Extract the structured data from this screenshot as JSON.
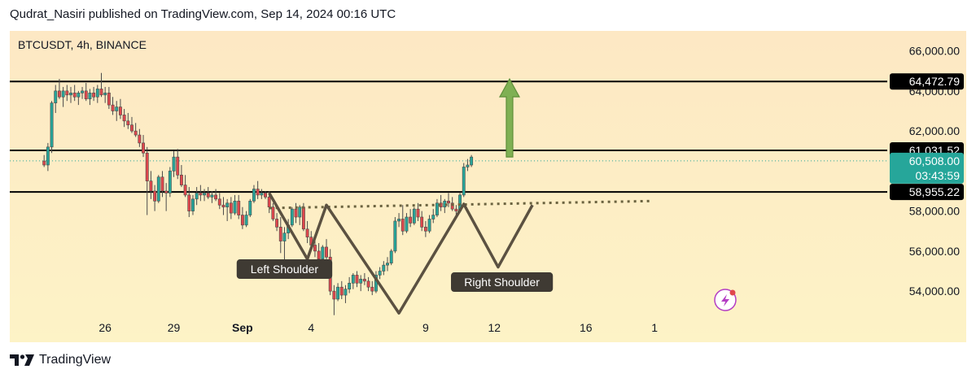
{
  "header": {
    "published_text": "Qudrat_Nasiri published on TradingView.com, Sep 14, 2024 00:16 UTC"
  },
  "footer": {
    "brand": "TradingView",
    "logo_icon": "tradingview-logo-icon"
  },
  "colors": {
    "bg_top": "#fde8c4",
    "bg_bottom": "#fdf3c6",
    "up": "#26a69a",
    "down": "#e0474c",
    "pattern": "#5b5141",
    "arrow": "#7fb053",
    "label_bg": "#3f3a33",
    "line": "#000000",
    "current_price_bg": "#26a69a",
    "dotted_neckline": "#6b6340"
  },
  "chart_data": {
    "type": "candlestick",
    "symbol_label": "BTCUSDT, 4h, BINANCE",
    "ylim": [
      52300,
      67000
    ],
    "xlim": [
      -25,
      205
    ],
    "y_ticks": [
      {
        "value": 66000,
        "label": "66,000.00"
      },
      {
        "value": 64000,
        "label": "64,000.00"
      },
      {
        "value": 62000,
        "label": "62,000.00"
      },
      {
        "value": 58000,
        "label": "58,000.00"
      },
      {
        "value": 56000,
        "label": "56,000.00"
      },
      {
        "value": 54000,
        "label": "54,000.00"
      }
    ],
    "x_ticks": [
      {
        "label": "26",
        "x": 0
      },
      {
        "label": "29",
        "x": 18
      },
      {
        "label": "Sep",
        "x": 36
      },
      {
        "label": "4",
        "x": 54
      },
      {
        "label": "9",
        "x": 84
      },
      {
        "label": "12",
        "x": 102
      },
      {
        "label": "16",
        "x": 126
      },
      {
        "label": "1",
        "x": 144
      }
    ],
    "levels": [
      {
        "price": 64472.79,
        "label": "64,472.79"
      },
      {
        "price": 61031.52,
        "label": "61,031.52"
      },
      {
        "price": 58955.22,
        "label": "58,955.22"
      }
    ],
    "current_price": {
      "price": 60508.0,
      "label": "60,508.00",
      "countdown": "03:43:59"
    },
    "neckline": [
      [
        43,
        58150
      ],
      [
        143,
        58500
      ]
    ],
    "pattern_path": [
      [
        43,
        58900
      ],
      [
        53,
        55600
      ],
      [
        58,
        58300
      ],
      [
        77,
        52900
      ],
      [
        94,
        58350
      ],
      [
        103,
        55200
      ],
      [
        112,
        58300
      ]
    ],
    "annotations": [
      {
        "text": "Left Shoulder",
        "x": 47,
        "price": 55100
      },
      {
        "text": "Right Shoulder",
        "x": 104,
        "price": 54450
      }
    ],
    "arrow": {
      "x": 106,
      "from": 60700,
      "to": 64600
    },
    "candles": [
      [
        -16,
        60500,
        60800,
        60200,
        60300
      ],
      [
        -15,
        60300,
        61400,
        60000,
        61200
      ],
      [
        -14,
        61200,
        63500,
        60900,
        63400
      ],
      [
        -13,
        63400,
        64300,
        62900,
        64000
      ],
      [
        -12,
        64000,
        64600,
        63600,
        63700
      ],
      [
        -11,
        63700,
        64200,
        63200,
        64000
      ],
      [
        -10,
        64000,
        64300,
        63500,
        63800
      ],
      [
        -9,
        63800,
        64200,
        63400,
        63900
      ],
      [
        -8,
        63900,
        64300,
        63500,
        63700
      ],
      [
        -7,
        63700,
        64000,
        63300,
        63900
      ],
      [
        -6,
        63900,
        64200,
        63600,
        64000
      ],
      [
        -5,
        64000,
        64400,
        63500,
        63600
      ],
      [
        -4,
        63600,
        64100,
        63300,
        63900
      ],
      [
        -3,
        63900,
        64200,
        63500,
        63700
      ],
      [
        -2,
        63700,
        64300,
        63400,
        64100
      ],
      [
        -1,
        64100,
        64900,
        63700,
        63800
      ],
      [
        0,
        63800,
        64200,
        63400,
        63900
      ],
      [
        1,
        63900,
        64200,
        63100,
        63300
      ],
      [
        2,
        63300,
        63700,
        62800,
        63000
      ],
      [
        3,
        63000,
        63500,
        62500,
        63200
      ],
      [
        4,
        63200,
        63600,
        62600,
        62800
      ],
      [
        5,
        62800,
        63100,
        62200,
        62500
      ],
      [
        6,
        62500,
        62900,
        62100,
        62300
      ],
      [
        7,
        62300,
        62700,
        61900,
        62000
      ],
      [
        8,
        62000,
        62400,
        61700,
        61800
      ],
      [
        9,
        61800,
        62100,
        61200,
        61400
      ],
      [
        10,
        61400,
        61800,
        60700,
        60900
      ],
      [
        11,
        60900,
        61200,
        57800,
        59500
      ],
      [
        12,
        59500,
        60000,
        58600,
        59000
      ],
      [
        13,
        59000,
        59300,
        58000,
        58500
      ],
      [
        14,
        58500,
        59800,
        58400,
        59700
      ],
      [
        15,
        59700,
        60000,
        58700,
        59000
      ],
      [
        16,
        59000,
        59400,
        58000,
        58900
      ],
      [
        17,
        58900,
        60200,
        58700,
        60000
      ],
      [
        18,
        60000,
        61000,
        59700,
        60700
      ],
      [
        19,
        60700,
        61100,
        59600,
        59800
      ],
      [
        20,
        59800,
        60300,
        59200,
        59300
      ],
      [
        21,
        59300,
        59800,
        58700,
        58800
      ],
      [
        22,
        58800,
        59200,
        57700,
        58000
      ],
      [
        23,
        58000,
        58800,
        57800,
        58600
      ],
      [
        24,
        58600,
        59200,
        58300,
        58900
      ],
      [
        25,
        58900,
        59300,
        58500,
        58800
      ],
      [
        26,
        58800,
        59100,
        58500,
        58900
      ],
      [
        27,
        58900,
        59200,
        58600,
        58700
      ],
      [
        28,
        58700,
        59000,
        58400,
        58800
      ],
      [
        29,
        58800,
        59100,
        58500,
        58600
      ],
      [
        30,
        58600,
        58900,
        58100,
        58300
      ],
      [
        31,
        58300,
        58700,
        57800,
        58200
      ],
      [
        32,
        58200,
        58600,
        57500,
        58400
      ],
      [
        33,
        58400,
        58700,
        57600,
        57900
      ],
      [
        34,
        57900,
        58800,
        57800,
        58500
      ],
      [
        35,
        58500,
        58800,
        57600,
        57800
      ],
      [
        36,
        57800,
        58200,
        57100,
        57300
      ],
      [
        37,
        57300,
        58000,
        57200,
        57800
      ],
      [
        38,
        57800,
        58600,
        57700,
        58500
      ],
      [
        39,
        58500,
        59300,
        58400,
        59100
      ],
      [
        40,
        59100,
        59500,
        58600,
        58800
      ],
      [
        41,
        58800,
        59100,
        58600,
        58900
      ],
      [
        42,
        58900,
        59000,
        58600,
        58700
      ],
      [
        43,
        58700,
        59000,
        57900,
        58200
      ],
      [
        44,
        58200,
        58400,
        57500,
        57600
      ],
      [
        45,
        57600,
        57900,
        57000,
        57200
      ],
      [
        46,
        57200,
        57700,
        55900,
        56500
      ],
      [
        47,
        56500,
        57200,
        55500,
        56900
      ],
      [
        48,
        56900,
        57600,
        56600,
        57300
      ],
      [
        49,
        57300,
        58200,
        57200,
        58100
      ],
      [
        50,
        58100,
        58400,
        57400,
        57700
      ],
      [
        51,
        57700,
        58300,
        57300,
        58200
      ],
      [
        52,
        58200,
        58400,
        57000,
        57100
      ],
      [
        53,
        57100,
        57500,
        56400,
        56700
      ],
      [
        54,
        56700,
        57000,
        56100,
        56300
      ],
      [
        55,
        56300,
        56700,
        55700,
        56000
      ],
      [
        56,
        56000,
        56400,
        55300,
        55600
      ],
      [
        57,
        55600,
        56300,
        55400,
        56200
      ],
      [
        58,
        56200,
        56600,
        55500,
        55700
      ],
      [
        59,
        55700,
        56100,
        53800,
        54000
      ],
      [
        60,
        54000,
        54300,
        52800,
        53600
      ],
      [
        61,
        53600,
        54400,
        53500,
        54200
      ],
      [
        62,
        54200,
        54500,
        53600,
        53800
      ],
      [
        63,
        53800,
        54300,
        53400,
        54100
      ],
      [
        64,
        54100,
        54700,
        53900,
        54400
      ],
      [
        65,
        54400,
        54900,
        54100,
        54800
      ],
      [
        66,
        54800,
        55000,
        54200,
        54400
      ],
      [
        67,
        54400,
        54800,
        54000,
        54600
      ],
      [
        68,
        54600,
        54900,
        54300,
        54500
      ],
      [
        69,
        54500,
        54700,
        54000,
        54200
      ],
      [
        70,
        54200,
        54500,
        53800,
        54000
      ],
      [
        71,
        54000,
        55000,
        53900,
        54800
      ],
      [
        72,
        54800,
        55200,
        54600,
        55000
      ],
      [
        73,
        55000,
        55500,
        54800,
        55300
      ],
      [
        74,
        55300,
        55700,
        55000,
        55400
      ],
      [
        75,
        55400,
        56100,
        55300,
        56000
      ],
      [
        76,
        56000,
        57700,
        55900,
        57500
      ],
      [
        77,
        57500,
        57900,
        57200,
        57600
      ],
      [
        78,
        57600,
        58300,
        56800,
        57000
      ],
      [
        79,
        57000,
        57900,
        56900,
        57700
      ],
      [
        80,
        57700,
        58100,
        57200,
        57400
      ],
      [
        81,
        57400,
        58200,
        57300,
        58100
      ],
      [
        82,
        58100,
        58400,
        57500,
        57700
      ],
      [
        83,
        57700,
        58000,
        57000,
        57200
      ],
      [
        84,
        57200,
        57500,
        56700,
        57000
      ],
      [
        85,
        57000,
        57800,
        56900,
        57600
      ],
      [
        86,
        57600,
        58100,
        57400,
        57800
      ],
      [
        87,
        57800,
        58600,
        57700,
        58400
      ],
      [
        88,
        58400,
        58800,
        58000,
        58200
      ],
      [
        89,
        58200,
        58600,
        57900,
        58500
      ],
      [
        90,
        58500,
        58900,
        58200,
        58400
      ],
      [
        91,
        58400,
        58700,
        58000,
        58100
      ],
      [
        92,
        58100,
        58300,
        57800,
        58000
      ],
      [
        93,
        58000,
        58900,
        57900,
        58800
      ],
      [
        94,
        58800,
        60400,
        58700,
        60200
      ],
      [
        95,
        60200,
        60600,
        60000,
        60300
      ],
      [
        96,
        60300,
        60800,
        60200,
        60700
      ]
    ]
  }
}
